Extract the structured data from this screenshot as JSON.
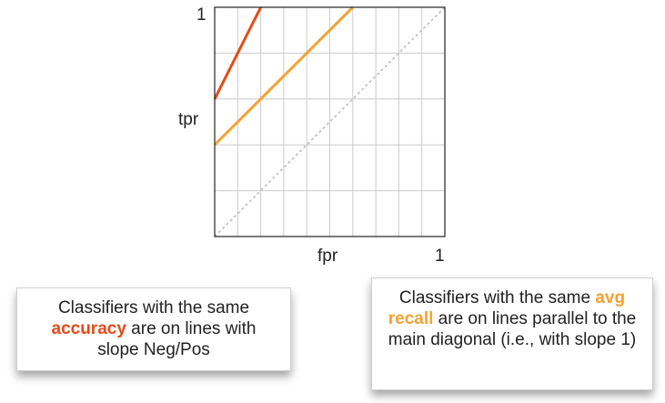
{
  "chart_data": {
    "type": "line",
    "xlabel": "fpr",
    "ylabel": "tpr",
    "x_tick_end": "1",
    "y_tick_end": "1",
    "xlim": [
      0,
      1
    ],
    "ylim": [
      0,
      1
    ],
    "grid": true,
    "series": [
      {
        "x": [
          0,
          0.2
        ],
        "y": [
          0.6,
          1.0
        ],
        "color": "#e64a19",
        "style": "solid"
      },
      {
        "x": [
          0,
          0.6
        ],
        "y": [
          0.4,
          1.0
        ],
        "color": "#f5a231",
        "style": "solid"
      },
      {
        "x": [
          0,
          1.0
        ],
        "y": [
          0.0,
          1.0
        ],
        "color": "#bbbbbb",
        "style": "dotted"
      }
    ]
  },
  "callouts": {
    "accuracy": {
      "pre": "Classifiers with the same ",
      "highlight": "accuracy",
      "post": " are on lines with slope Neg/Pos"
    },
    "recall": {
      "pre": "Classifiers with the same ",
      "highlight": "avg recall",
      "post": " are on lines parallel to the main diagonal (i.e., with slope 1)"
    }
  },
  "colors": {
    "accuracy": "#e64a19",
    "avg_recall": "#f5a231",
    "diagonal": "#bbbbbb",
    "grid": "#cccccc"
  }
}
